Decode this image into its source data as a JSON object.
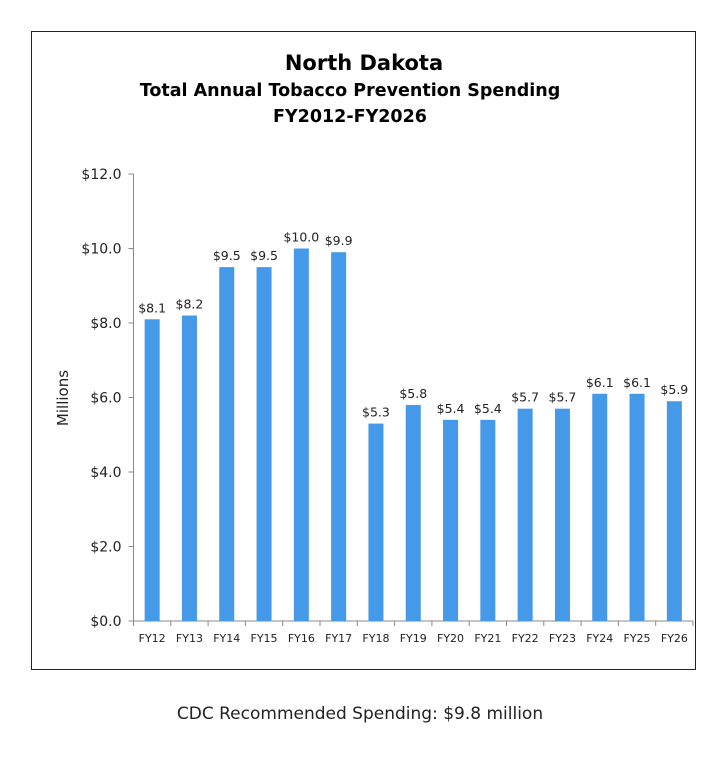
{
  "chart_data": {
    "type": "bar",
    "title": "North Dakota",
    "subtitle": [
      "Total Annual Tobacco Prevention Spending",
      "FY2012-FY2026"
    ],
    "xlabel": "",
    "ylabel": "Millions",
    "ylim": [
      0,
      12
    ],
    "yticks": [
      "$0.0",
      "$2.0",
      "$4.0",
      "$6.0",
      "$8.0",
      "$10.0",
      "$12.0"
    ],
    "categories": [
      "FY12",
      "FY13",
      "FY14",
      "FY15",
      "FY16",
      "FY17",
      "FY18",
      "FY19",
      "FY20",
      "FY21",
      "FY22",
      "FY23",
      "FY24",
      "FY25",
      "FY26"
    ],
    "values": [
      8.1,
      8.2,
      9.5,
      9.5,
      10.0,
      9.9,
      5.3,
      5.8,
      5.4,
      5.4,
      5.7,
      5.7,
      6.1,
      6.1,
      5.9
    ],
    "data_labels": [
      "$8.1",
      "$8.2",
      "$9.5",
      "$9.5",
      "$10.0",
      "$9.9",
      "$5.3",
      "$5.8",
      "$5.4",
      "$5.4",
      "$5.7",
      "$5.7",
      "$6.1",
      "$6.1",
      "$5.9"
    ],
    "bar_color": "#4499e8",
    "grid": false,
    "legend": "none"
  },
  "footnote": "CDC Recommended Spending: $9.8 million"
}
